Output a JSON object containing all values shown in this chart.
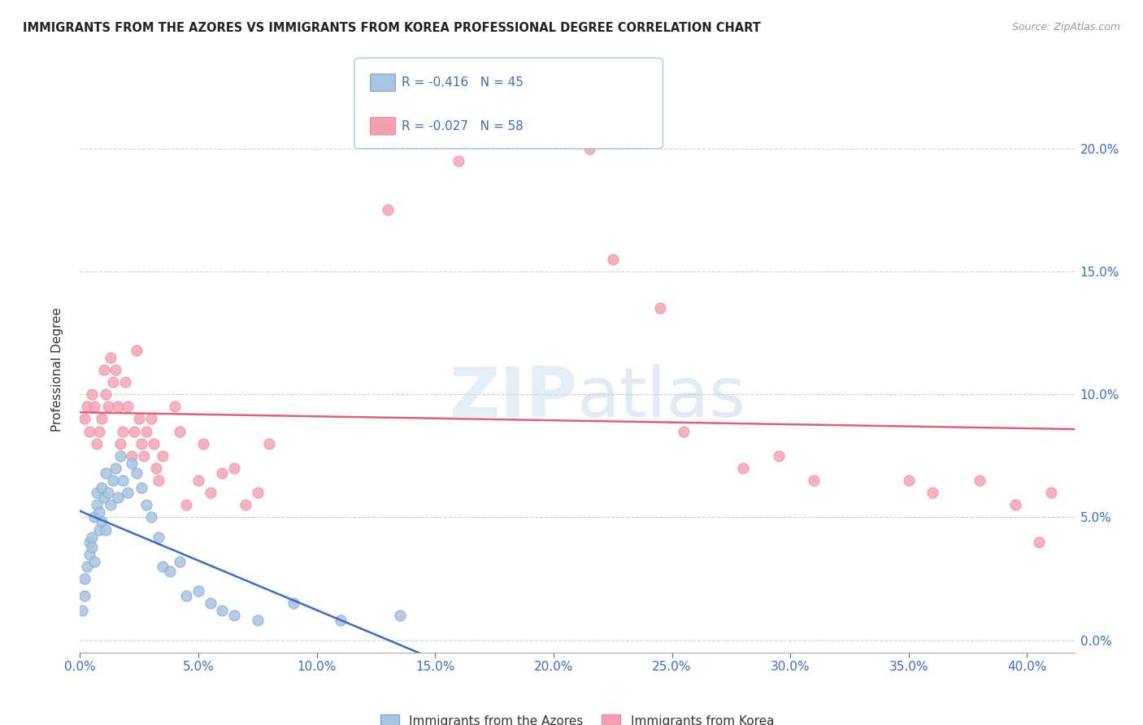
{
  "title": "IMMIGRANTS FROM THE AZORES VS IMMIGRANTS FROM KOREA PROFESSIONAL DEGREE CORRELATION CHART",
  "source": "Source: ZipAtlas.com",
  "ylabel": "Professional Degree",
  "legend_label1": "Immigrants from the Azores",
  "legend_label2": "Immigrants from Korea",
  "xlim": [
    0.0,
    0.42
  ],
  "ylim": [
    -0.005,
    0.225
  ],
  "R1": "-0.416",
  "N1": "45",
  "R2": "-0.027",
  "N2": "58",
  "color1": "#a8c4e0",
  "color2": "#f4a0b0",
  "trendline1_color": "#3a6bc9",
  "trendline2_color": "#e0607a",
  "background_color": "#ffffff",
  "grid_color": "#d0d0d0",
  "azores_x": [
    0.001,
    0.002,
    0.002,
    0.003,
    0.004,
    0.004,
    0.005,
    0.005,
    0.006,
    0.006,
    0.007,
    0.007,
    0.008,
    0.008,
    0.009,
    0.009,
    0.01,
    0.011,
    0.011,
    0.012,
    0.013,
    0.014,
    0.015,
    0.016,
    0.017,
    0.018,
    0.02,
    0.022,
    0.024,
    0.026,
    0.028,
    0.03,
    0.033,
    0.035,
    0.038,
    0.042,
    0.045,
    0.05,
    0.055,
    0.06,
    0.065,
    0.075,
    0.09,
    0.11,
    0.135
  ],
  "azores_y": [
    0.012,
    0.018,
    0.025,
    0.03,
    0.035,
    0.04,
    0.042,
    0.038,
    0.032,
    0.05,
    0.055,
    0.06,
    0.045,
    0.052,
    0.048,
    0.062,
    0.058,
    0.045,
    0.068,
    0.06,
    0.055,
    0.065,
    0.07,
    0.058,
    0.075,
    0.065,
    0.06,
    0.072,
    0.068,
    0.062,
    0.055,
    0.05,
    0.042,
    0.03,
    0.028,
    0.032,
    0.018,
    0.02,
    0.015,
    0.012,
    0.01,
    0.008,
    0.015,
    0.008,
    0.01
  ],
  "korea_x": [
    0.002,
    0.003,
    0.004,
    0.005,
    0.006,
    0.007,
    0.008,
    0.009,
    0.01,
    0.011,
    0.012,
    0.013,
    0.014,
    0.015,
    0.016,
    0.017,
    0.018,
    0.019,
    0.02,
    0.022,
    0.023,
    0.024,
    0.025,
    0.026,
    0.027,
    0.028,
    0.03,
    0.031,
    0.032,
    0.033,
    0.035,
    0.04,
    0.042,
    0.045,
    0.05,
    0.052,
    0.055,
    0.06,
    0.065,
    0.07,
    0.075,
    0.08,
    0.13,
    0.16,
    0.2,
    0.215,
    0.225,
    0.245,
    0.255,
    0.28,
    0.295,
    0.31,
    0.35,
    0.36,
    0.38,
    0.395,
    0.405,
    0.41
  ],
  "korea_y": [
    0.09,
    0.095,
    0.085,
    0.1,
    0.095,
    0.08,
    0.085,
    0.09,
    0.11,
    0.1,
    0.095,
    0.115,
    0.105,
    0.11,
    0.095,
    0.08,
    0.085,
    0.105,
    0.095,
    0.075,
    0.085,
    0.118,
    0.09,
    0.08,
    0.075,
    0.085,
    0.09,
    0.08,
    0.07,
    0.065,
    0.075,
    0.095,
    0.085,
    0.055,
    0.065,
    0.08,
    0.06,
    0.068,
    0.07,
    0.055,
    0.06,
    0.08,
    0.175,
    0.195,
    0.205,
    0.2,
    0.155,
    0.135,
    0.085,
    0.07,
    0.075,
    0.065,
    0.065,
    0.06,
    0.065,
    0.055,
    0.04,
    0.06
  ]
}
